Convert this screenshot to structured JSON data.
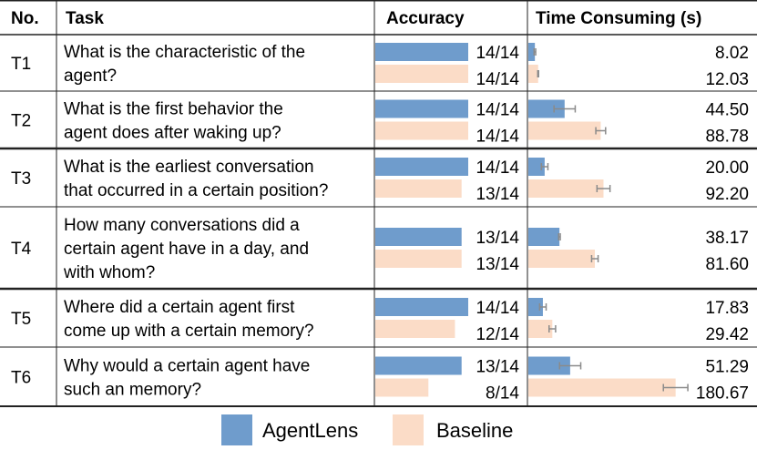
{
  "chart_data": {
    "type": "table",
    "columns": [
      "No.",
      "Task",
      "Accuracy",
      "Time Consuming (s)"
    ],
    "series": [
      {
        "name": "AgentLens",
        "color": "#6f9ccc"
      },
      {
        "name": "Baseline",
        "color": "#fbdcc7"
      }
    ],
    "rows": [
      {
        "id": "T1",
        "task": [
          "What is the characteristic of the",
          "agent?"
        ],
        "accuracy": {
          "agentlens": {
            "correct": 14,
            "total": 14,
            "label": "14/14"
          },
          "baseline": {
            "correct": 14,
            "total": 14,
            "label": "14/14"
          }
        },
        "time": {
          "agentlens": {
            "value": 8.02,
            "label": "8.02",
            "err": 1.0
          },
          "baseline": {
            "value": 12.03,
            "label": "12.03",
            "err": 0.5
          }
        }
      },
      {
        "id": "T2",
        "task": [
          "What is the first behavior the",
          "agent does after waking up?"
        ],
        "accuracy": {
          "agentlens": {
            "correct": 14,
            "total": 14,
            "label": "14/14"
          },
          "baseline": {
            "correct": 14,
            "total": 14,
            "label": "14/14"
          }
        },
        "time": {
          "agentlens": {
            "value": 44.5,
            "label": "44.50",
            "err": 13.0
          },
          "baseline": {
            "value": 88.78,
            "label": "88.78",
            "err": 6.0
          }
        }
      },
      {
        "id": "T3",
        "task": [
          "What is the earliest conversation",
          "that occurred in a certain position?"
        ],
        "accuracy": {
          "agentlens": {
            "correct": 14,
            "total": 14,
            "label": "14/14"
          },
          "baseline": {
            "correct": 13,
            "total": 14,
            "label": "13/14"
          }
        },
        "time": {
          "agentlens": {
            "value": 20.0,
            "label": "20.00",
            "err": 4.0
          },
          "baseline": {
            "value": 92.2,
            "label": "92.20",
            "err": 8.0
          }
        }
      },
      {
        "id": "T4",
        "task": [
          "How many conversations did a",
          "certain agent have in a day, and",
          "with whom?"
        ],
        "accuracy": {
          "agentlens": {
            "correct": 13,
            "total": 14,
            "label": "13/14"
          },
          "baseline": {
            "correct": 13,
            "total": 14,
            "label": "13/14"
          }
        },
        "time": {
          "agentlens": {
            "value": 38.17,
            "label": "38.17",
            "err": 1.0
          },
          "baseline": {
            "value": 81.6,
            "label": "81.60",
            "err": 4.0
          }
        }
      },
      {
        "id": "T5",
        "task": [
          "Where did a certain agent first",
          "come up with a certain memory?"
        ],
        "accuracy": {
          "agentlens": {
            "correct": 14,
            "total": 14,
            "label": "14/14"
          },
          "baseline": {
            "correct": 12,
            "total": 14,
            "label": "12/14"
          }
        },
        "time": {
          "agentlens": {
            "value": 17.83,
            "label": "17.83",
            "err": 4.0
          },
          "baseline": {
            "value": 29.42,
            "label": "29.42",
            "err": 4.0
          }
        }
      },
      {
        "id": "T6",
        "task": [
          "Why would a certain agent have",
          "such an memory?"
        ],
        "accuracy": {
          "agentlens": {
            "correct": 13,
            "total": 14,
            "label": "13/14"
          },
          "baseline": {
            "correct": 8,
            "total": 14,
            "label": "8/14"
          }
        },
        "time": {
          "agentlens": {
            "value": 51.29,
            "label": "51.29",
            "err": 13.0
          },
          "baseline": {
            "value": 180.67,
            "label": "180.67",
            "err": 15.0
          }
        }
      }
    ],
    "time_axis_max": 190
  }
}
